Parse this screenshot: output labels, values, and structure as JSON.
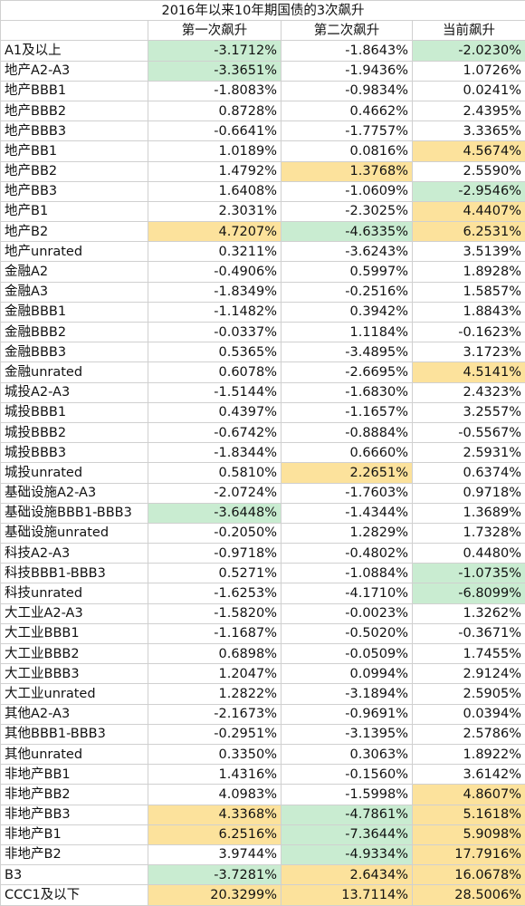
{
  "title": "2016年以来10年期国债的3次飙升",
  "table": {
    "columns": [
      "第一次飙升",
      "第二次飙升",
      "当前飙升"
    ],
    "rows": [
      [
        "A1及以上",
        {
          "text": "-3.1712%",
          "color": "#c9ecd1"
        },
        "-1.8643%",
        {
          "text": "-2.0230%",
          "color": "#c9ecd1"
        }
      ],
      [
        "地产A2-A3",
        {
          "text": "-3.3651%",
          "color": "#c9ecd1"
        },
        "-1.9436%",
        "1.0726%"
      ],
      [
        "地产BBB1",
        "-1.8083%",
        "-0.9834%",
        "0.0241%"
      ],
      [
        "地产BBB2",
        "0.8728%",
        "0.4662%",
        "2.4395%"
      ],
      [
        "地产BBB3",
        "-0.6641%",
        "-1.7757%",
        "3.3365%"
      ],
      [
        "地产BB1",
        "1.0189%",
        "0.0816%",
        {
          "text": "4.5674%",
          "color": "#fce29c"
        }
      ],
      [
        "地产BB2",
        "1.4792%",
        {
          "text": "1.3768%",
          "color": "#fce29c"
        },
        "2.5590%"
      ],
      [
        "地产BB3",
        "1.6408%",
        "-1.0609%",
        {
          "text": "-2.9546%",
          "color": "#c9ecd1"
        }
      ],
      [
        "地产B1",
        "2.3031%",
        "-2.3025%",
        {
          "text": "4.4407%",
          "color": "#fce29c"
        }
      ],
      [
        "地产B2",
        {
          "text": "4.7207%",
          "color": "#fce29c"
        },
        {
          "text": "-4.6335%",
          "color": "#c9ecd1"
        },
        {
          "text": "6.2531%",
          "color": "#fce29c"
        }
      ],
      [
        "地产unrated",
        "0.3211%",
        "-3.6243%",
        "3.5139%"
      ],
      [
        "金融A2",
        "-0.4906%",
        "0.5997%",
        "1.8928%"
      ],
      [
        "金融A3",
        "-1.8349%",
        "-0.2516%",
        "1.5857%"
      ],
      [
        "金融BBB1",
        "-1.1482%",
        "0.3942%",
        "1.8843%"
      ],
      [
        "金融BBB2",
        "-0.0337%",
        "1.1184%",
        "-0.1623%"
      ],
      [
        "金融BBB3",
        "0.5365%",
        "-3.4895%",
        "3.1723%"
      ],
      [
        "金融unrated",
        "0.6078%",
        "-2.6695%",
        {
          "text": "4.5141%",
          "color": "#fce29c"
        }
      ],
      [
        "城投A2-A3",
        "-1.5144%",
        "-1.6830%",
        "2.4323%"
      ],
      [
        "城投BBB1",
        "0.4397%",
        "-1.1657%",
        "3.2557%"
      ],
      [
        "城投BBB2",
        "-0.6742%",
        "-0.8884%",
        "-0.5567%"
      ],
      [
        "城投BBB3",
        "-1.8344%",
        "0.6660%",
        "2.5931%"
      ],
      [
        "城投unrated",
        "0.5810%",
        {
          "text": "2.2651%",
          "color": "#fce29c"
        },
        "0.6374%"
      ],
      [
        "基础设施A2-A3",
        "-2.0724%",
        "-1.7603%",
        "0.9718%"
      ],
      [
        "基础设施BBB1-BBB3",
        {
          "text": "-3.6448%",
          "color": "#c9ecd1"
        },
        "-1.4344%",
        "1.3689%"
      ],
      [
        "基础设施unrated",
        "-0.2050%",
        "1.2829%",
        "1.7328%"
      ],
      [
        "科技A2-A3",
        "-0.9718%",
        "-0.4802%",
        "0.4480%"
      ],
      [
        "科技BBB1-BBB3",
        "0.5271%",
        "-1.0884%",
        {
          "text": "-1.0735%",
          "color": "#c9ecd1"
        }
      ],
      [
        "科技unrated",
        "-1.6253%",
        "-4.1710%",
        {
          "text": "-6.8099%",
          "color": "#c9ecd1"
        }
      ],
      [
        "大工业A2-A3",
        "-1.5820%",
        "-0.0023%",
        "1.3262%"
      ],
      [
        "大工业BBB1",
        "-1.1687%",
        "-0.5020%",
        "-0.3671%"
      ],
      [
        "大工业BBB2",
        "0.6898%",
        "-0.0509%",
        "1.7455%"
      ],
      [
        "大工业BBB3",
        "1.2047%",
        "0.0994%",
        "2.9124%"
      ],
      [
        "大工业unrated",
        "1.2822%",
        "-3.1894%",
        "2.5905%"
      ],
      [
        "其他A2-A3",
        "-2.1673%",
        "-0.9691%",
        "0.0394%"
      ],
      [
        "其他BBB1-BBB3",
        "-0.2951%",
        "-3.1395%",
        "2.5786%"
      ],
      [
        "其他unrated",
        "0.3350%",
        "0.3063%",
        "1.8922%"
      ],
      [
        "非地产BB1",
        "1.4316%",
        "-0.1560%",
        "3.6142%"
      ],
      [
        "非地产BB2",
        "4.0983%",
        "-1.5998%",
        {
          "text": "4.8607%",
          "color": "#fce29c"
        }
      ],
      [
        "非地产BB3",
        {
          "text": "4.3368%",
          "color": "#fce29c"
        },
        {
          "text": "-4.7861%",
          "color": "#c9ecd1"
        },
        {
          "text": "5.1618%",
          "color": "#fce29c"
        }
      ],
      [
        "非地产B1",
        {
          "text": "6.2516%",
          "color": "#fce29c"
        },
        {
          "text": "-7.3644%",
          "color": "#c9ecd1"
        },
        {
          "text": "5.9098%",
          "color": "#fce29c"
        }
      ],
      [
        "非地产B2",
        "3.9744%",
        {
          "text": "-4.9334%",
          "color": "#c9ecd1"
        },
        {
          "text": "17.7916%",
          "color": "#fce29c"
        }
      ],
      [
        "B3",
        {
          "text": "-3.7281%",
          "color": "#c9ecd1"
        },
        {
          "text": "2.6434%",
          "color": "#fce29c"
        },
        {
          "text": "16.0678%",
          "color": "#fce29c"
        }
      ],
      [
        "CCC1及以下",
        {
          "text": "20.3299%",
          "color": "#fce29c"
        },
        {
          "text": "13.7114%",
          "color": "#fce29c"
        },
        {
          "text": "28.5006%",
          "color": "#fce29c"
        }
      ]
    ]
  }
}
